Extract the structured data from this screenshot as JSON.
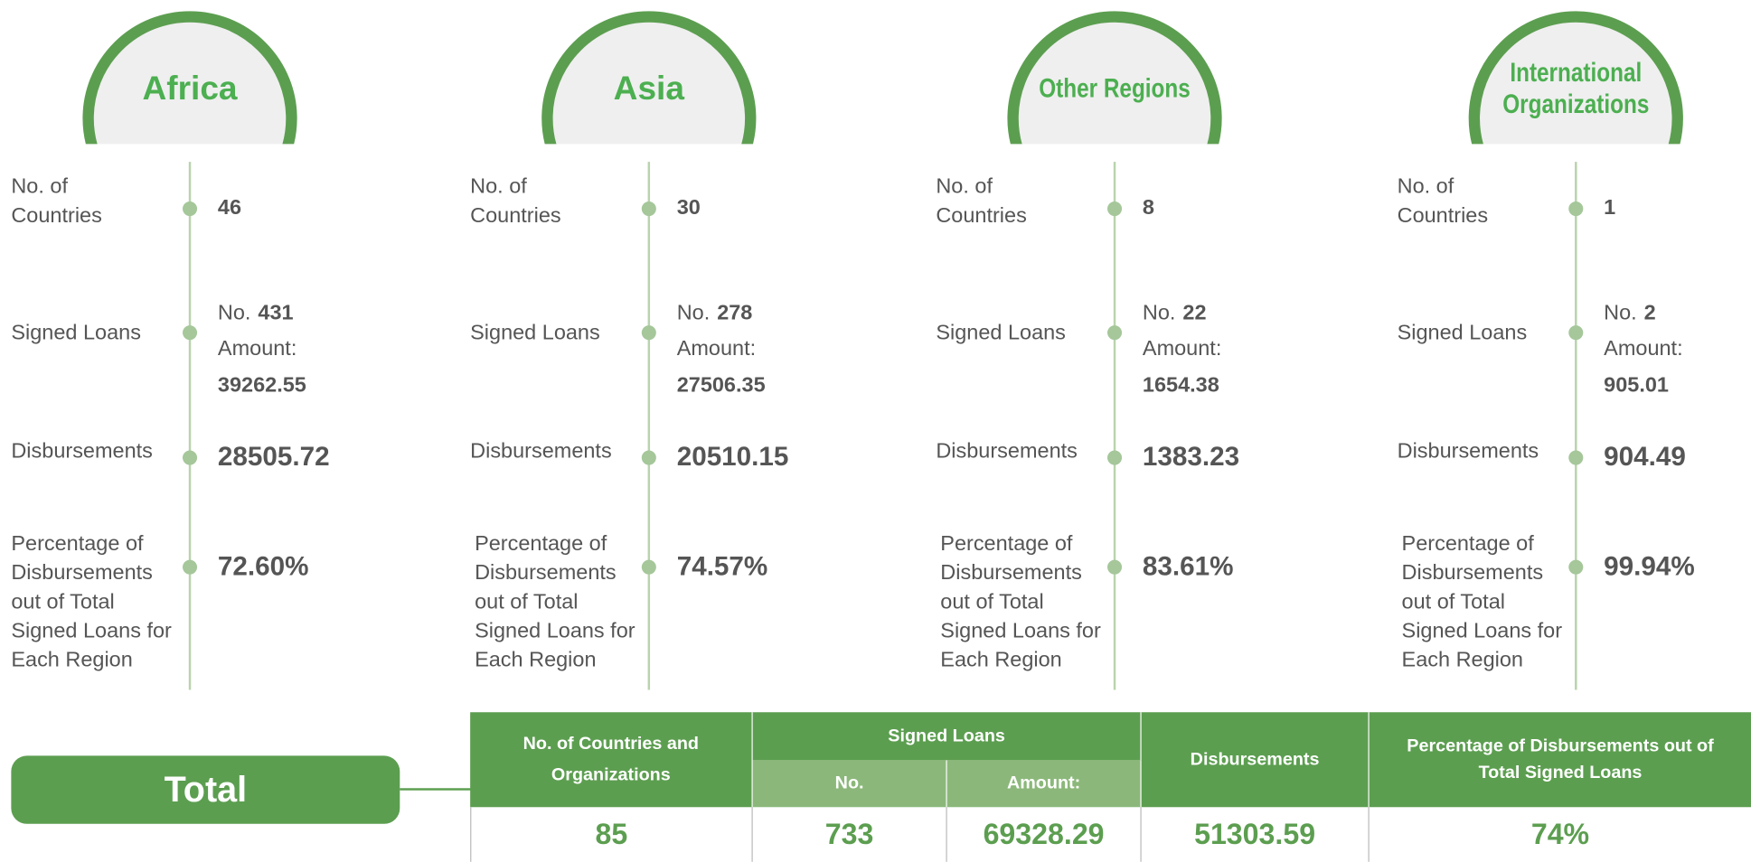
{
  "regions": [
    {
      "name": "Africa",
      "countries_label": "No. of Countries",
      "countries": "46",
      "loans_label": "Signed Loans",
      "no_label": "No.",
      "loans_no": "431",
      "amount_label": "Amount:",
      "amount": "39262.55",
      "disb_label": "Disbursements",
      "disb": "28505.72",
      "pct_label": "Percentage of Disbursements out of Total Signed Loans for Each Region",
      "pct": "72.60%"
    },
    {
      "name": "Asia",
      "countries_label": "No. of Countries",
      "countries": "30",
      "loans_label": "Signed Loans",
      "no_label": "No.",
      "loans_no": "278",
      "amount_label": "Amount:",
      "amount": "27506.35",
      "disb_label": "Disbursements",
      "disb": "20510.15",
      "pct_label": "Percentage of Disbursements out of Total Signed Loans for Each Region",
      "pct": "74.57%"
    },
    {
      "name": "Other Regions",
      "countries_label": "No. of Countries",
      "countries": "8",
      "loans_label": "Signed Loans",
      "no_label": "No.",
      "loans_no": "22",
      "amount_label": "Amount:",
      "amount": "1654.38",
      "disb_label": "Disbursements",
      "disb": "1383.23",
      "pct_label": "Percentage of Disbursements out of Total Signed Loans for Each Region",
      "pct": "83.61%"
    },
    {
      "name": "International Organizations",
      "countries_label": "No. of Countries",
      "countries": "1",
      "loans_label": "Signed Loans",
      "no_label": "No.",
      "loans_no": "2",
      "amount_label": "Amount:",
      "amount": "905.01",
      "disb_label": "Disbursements",
      "disb": "904.49",
      "pct_label": "Percentage of Disbursements out of Total Signed Loans for Each Region",
      "pct": "99.94%"
    }
  ],
  "total": {
    "label": "Total",
    "headers": {
      "countries": "No. of Countries and Organizations",
      "loans": "Signed Loans",
      "no": "No.",
      "amount": "Amount:",
      "disb": "Disbursements",
      "pct": "Percentage of Disbursements out of Total Signed Loans"
    },
    "values": {
      "countries": "85",
      "no": "733",
      "amount": "69328.29",
      "disb": "51303.59",
      "pct": "74%"
    }
  }
}
